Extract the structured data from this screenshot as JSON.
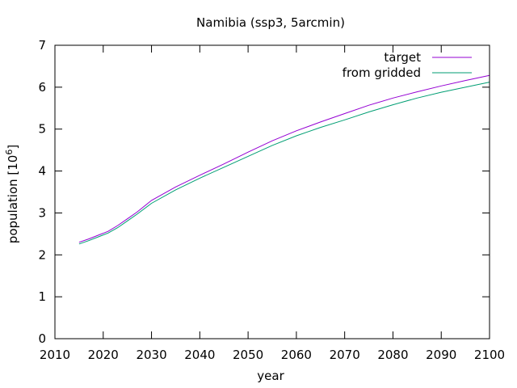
{
  "chart_data": {
    "type": "line",
    "title": "Namibia (ssp3, 5arcmin)",
    "xlabel": "year",
    "ylabel_prefix": "population [10",
    "ylabel_exponent": "6",
    "ylabel_suffix": "]",
    "xlim": [
      2010,
      2100
    ],
    "ylim": [
      0,
      7
    ],
    "x_ticks": [
      2010,
      2020,
      2030,
      2040,
      2050,
      2060,
      2070,
      2080,
      2090,
      2100
    ],
    "y_ticks": [
      0,
      1,
      2,
      3,
      4,
      5,
      6,
      7
    ],
    "legend_position": "top-right",
    "grid": false,
    "series": [
      {
        "name": "target",
        "color": "#9400d3",
        "x": [
          2015,
          2017,
          2019,
          2021,
          2023,
          2025,
          2027,
          2030,
          2035,
          2040,
          2045,
          2050,
          2055,
          2060,
          2065,
          2070,
          2075,
          2080,
          2085,
          2090,
          2095,
          2100
        ],
        "y": [
          2.3,
          2.38,
          2.47,
          2.56,
          2.7,
          2.86,
          3.02,
          3.3,
          3.62,
          3.9,
          4.17,
          4.45,
          4.72,
          4.96,
          5.17,
          5.37,
          5.57,
          5.74,
          5.89,
          6.03,
          6.16,
          6.28
        ]
      },
      {
        "name": "from gridded",
        "color": "#009e73",
        "x": [
          2015,
          2017,
          2019,
          2021,
          2023,
          2025,
          2027,
          2030,
          2035,
          2040,
          2045,
          2050,
          2055,
          2060,
          2065,
          2070,
          2075,
          2080,
          2085,
          2090,
          2095,
          2100
        ],
        "y": [
          2.26,
          2.34,
          2.43,
          2.52,
          2.65,
          2.81,
          2.97,
          3.23,
          3.55,
          3.83,
          4.09,
          4.35,
          4.61,
          4.84,
          5.04,
          5.22,
          5.41,
          5.58,
          5.74,
          5.88,
          6.0,
          6.12
        ]
      }
    ]
  }
}
